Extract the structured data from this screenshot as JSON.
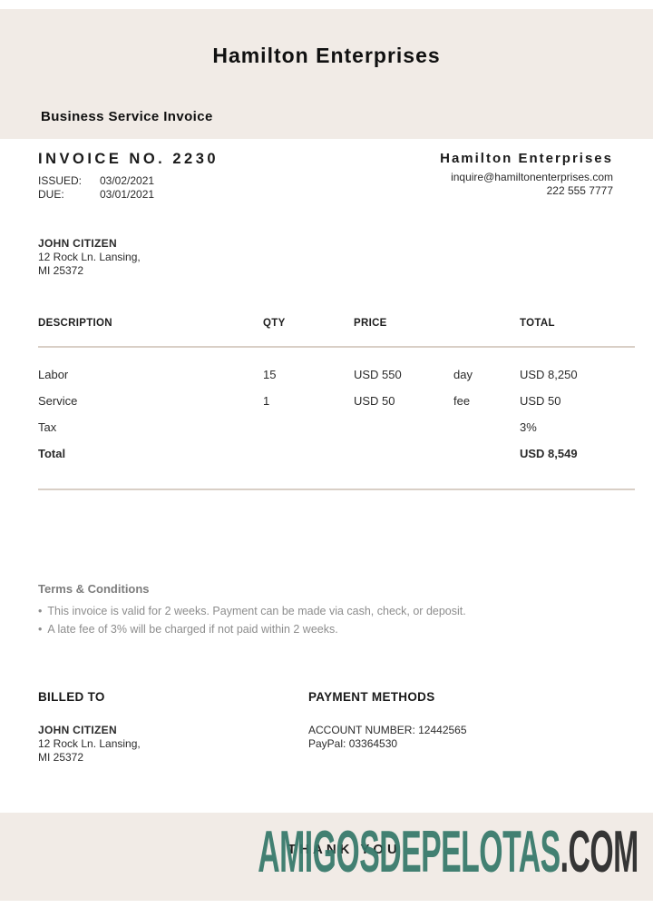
{
  "document": {
    "title": "Hamilton Enterprises",
    "subtitle": "Business Service Invoice"
  },
  "invoice": {
    "number_label": "INVOICE NO. 2230",
    "issued_label": "ISSUED:",
    "issued_date": "03/02/2021",
    "due_label": "DUE:",
    "due_date": "03/01/2021"
  },
  "company": {
    "name": "Hamilton Enterprises",
    "email": "inquire@hamiltonenterprises.com",
    "phone": "222 555 7777"
  },
  "customer": {
    "name": "JOHN CITIZEN",
    "address_line1": "12 Rock Ln. Lansing,",
    "address_line2": "MI 25372"
  },
  "table": {
    "headers": [
      "DESCRIPTION",
      "QTY",
      "PRICE",
      "",
      "TOTAL"
    ],
    "rows": [
      {
        "description": "Labor",
        "qty": "15",
        "price": "USD 550",
        "unit": "day",
        "total": "USD 8,250"
      },
      {
        "description": "Service",
        "qty": "1",
        "price": "USD 50",
        "unit": "fee",
        "total": "USD 50"
      },
      {
        "description": "Tax",
        "qty": "",
        "price": "",
        "unit": "",
        "total": "3%"
      },
      {
        "description": "Total",
        "qty": "",
        "price": "",
        "unit": "",
        "total": "USD 8,549"
      }
    ]
  },
  "terms": {
    "title": "Terms & Conditions",
    "items": [
      "This invoice is valid for 2 weeks. Payment can be made via cash, check, or deposit.",
      "A late fee of 3% will be charged if not paid within 2 weeks."
    ]
  },
  "footer": {
    "billed_to_label": "BILLED TO",
    "payment_methods_label": "PAYMENT METHODS",
    "account_line": "ACCOUNT NUMBER: 12442565",
    "paypal_line": "PayPal: 03364530"
  },
  "bottom": {
    "thank_you": "THANK YOU",
    "watermark_main": "AMIGOSDEPELOTAS",
    "watermark_suffix": ".COM"
  },
  "colors": {
    "band": "#f1ebe6",
    "rule": "#d9cfc6",
    "terms_gray": "#8d8d8d",
    "watermark_teal": "#347769",
    "watermark_dark": "#262626"
  }
}
